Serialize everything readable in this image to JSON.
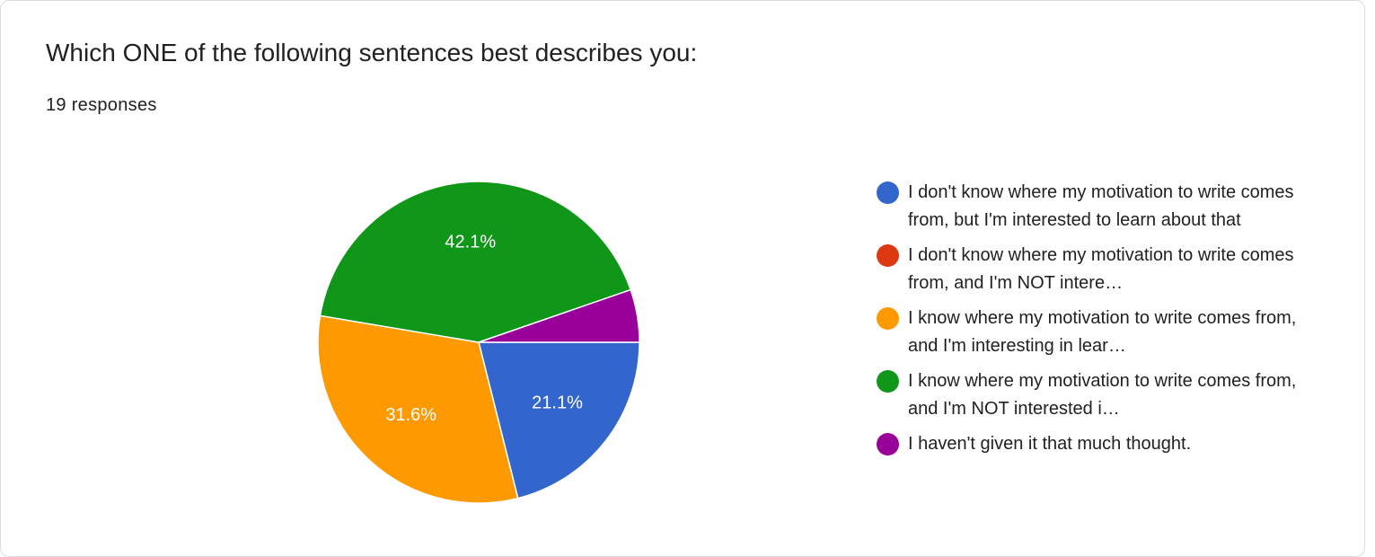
{
  "chart_data": {
    "type": "pie",
    "title": "Which ONE of the following sentences best describes you:",
    "subtitle": "19 responses",
    "categories": [
      "I don't know where my motivation to write comes from, but I'm interested to learn about that",
      "I don't know where my motivation to write comes from, and I'm NOT intere…",
      "I know where my motivation to write comes from, and I'm interesting in lear…",
      "I know where my motivation to write comes from, and I'm NOT interested i…",
      "I haven't given it that much thought."
    ],
    "values": [
      21.1,
      0,
      31.6,
      42.1,
      5.3
    ],
    "value_labels": [
      "21.1%",
      null,
      "31.6%",
      "42.1%",
      null
    ],
    "colors": [
      "#3366cc",
      "#dc3912",
      "#ff9900",
      "#109618",
      "#990099"
    ]
  }
}
